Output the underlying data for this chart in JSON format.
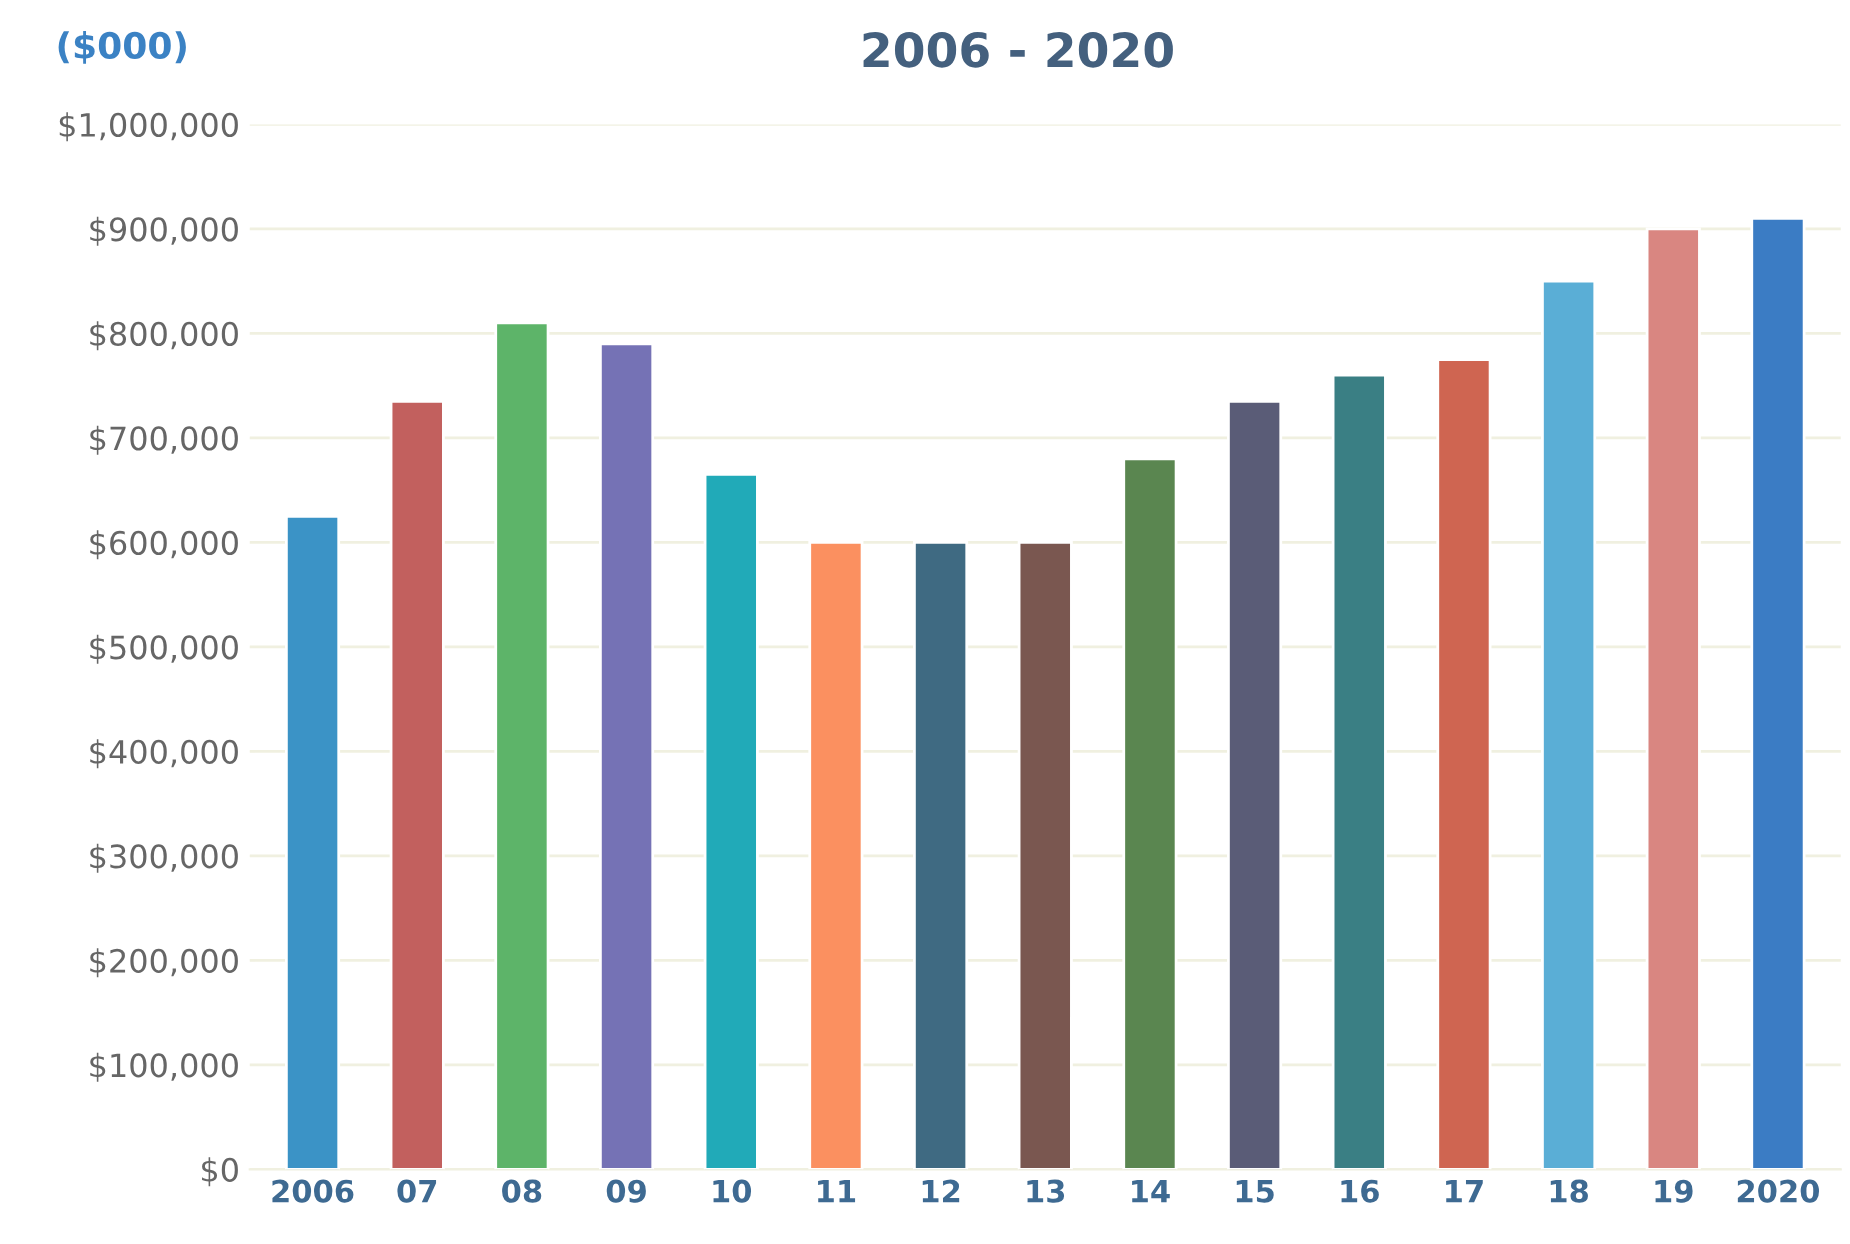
{
  "chart_data": {
    "type": "bar",
    "title": "2006 - 2020",
    "ylabel": "($000)",
    "categories": [
      "2006",
      "07",
      "08",
      "09",
      "10",
      "11",
      "12",
      "13",
      "14",
      "15",
      "16",
      "17",
      "18",
      "19",
      "2020"
    ],
    "values": [
      625000,
      735000,
      810000,
      790000,
      665000,
      600000,
      600000,
      600000,
      680000,
      735000,
      760000,
      775000,
      850000,
      900000,
      910000
    ],
    "colors": [
      "#3b93c6",
      "#c2605e",
      "#5db469",
      "#7572b5",
      "#21aab8",
      "#fb9060",
      "#3f6a82",
      "#7a5750",
      "#5a8650",
      "#5a5c77",
      "#3a7f84",
      "#cf6551",
      "#5aaed6",
      "#d98681",
      "#3b7cc4"
    ],
    "ylim": [
      0,
      1000000
    ],
    "yticks": [
      {
        "value": 0,
        "label": "$0"
      },
      {
        "value": 100000,
        "label": "$100,000"
      },
      {
        "value": 200000,
        "label": "$200,000"
      },
      {
        "value": 300000,
        "label": "$300,000"
      },
      {
        "value": 400000,
        "label": "$400,000"
      },
      {
        "value": 500000,
        "label": "$500,000"
      },
      {
        "value": 600000,
        "label": "$600,000"
      },
      {
        "value": 700000,
        "label": "$700,000"
      },
      {
        "value": 800000,
        "label": "$800,000"
      },
      {
        "value": 900000,
        "label": "$900,000"
      },
      {
        "value": 1000000,
        "label": "$1,000,000"
      }
    ],
    "grid": "y"
  }
}
